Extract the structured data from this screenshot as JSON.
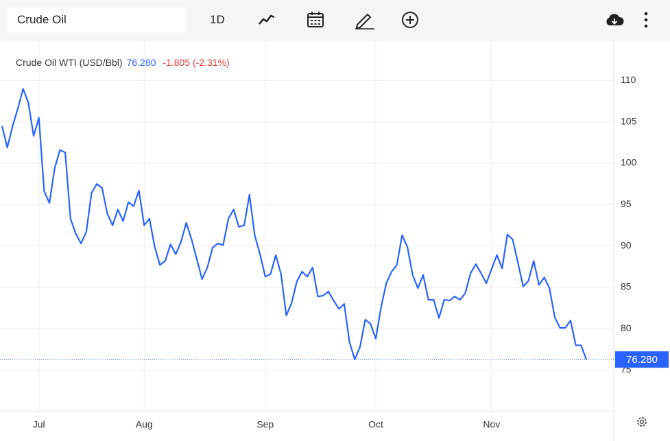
{
  "toolbar": {
    "search": "Crude Oil",
    "interval": "1D"
  },
  "chart_data": {
    "type": "line",
    "title": "Crude Oil WTI (USD/Bbl)",
    "change": "-1.805 (-2.31%)",
    "price_line": {
      "value": 76.28,
      "label": "76.280"
    },
    "categories": [
      null,
      null,
      null,
      null,
      null,
      null,
      null,
      "Jul",
      null,
      null,
      null,
      null,
      null,
      null,
      null,
      null,
      null,
      null,
      null,
      null,
      null,
      null,
      null,
      null,
      null,
      null,
      null,
      "Aug",
      null,
      null,
      null,
      null,
      null,
      null,
      null,
      null,
      null,
      null,
      null,
      null,
      null,
      null,
      null,
      null,
      null,
      null,
      null,
      null,
      null,
      null,
      "Sep",
      null,
      null,
      null,
      null,
      null,
      null,
      null,
      null,
      null,
      null,
      null,
      null,
      null,
      null,
      null,
      null,
      null,
      null,
      null,
      null,
      "Oct",
      null,
      null,
      null,
      null,
      null,
      null,
      null,
      null,
      null,
      null,
      null,
      null,
      null,
      null,
      null,
      null,
      null,
      null,
      null,
      null,
      null,
      "Nov",
      null,
      null,
      null,
      null,
      null,
      null,
      null,
      null,
      null,
      null,
      null,
      null,
      null,
      null,
      null,
      null,
      null,
      null
    ],
    "series": [
      {
        "name": "Crude Oil WTI",
        "color": "#2962ff",
        "values": [
          104.5,
          101.9,
          104.5,
          106.6,
          109.0,
          107.3,
          103.3,
          105.5,
          96.6,
          95.2,
          99.4,
          101.6,
          101.3,
          93.3,
          91.5,
          90.3,
          91.7,
          96.4,
          97.5,
          97.0,
          93.9,
          92.5,
          94.4,
          93.0,
          95.3,
          94.8,
          96.7,
          92.5,
          93.3,
          89.9,
          87.7,
          88.2,
          90.2,
          89.0,
          90.5,
          92.8,
          90.8,
          88.4,
          86.0,
          87.4,
          89.8,
          90.3,
          90.1,
          93.3,
          94.4,
          92.3,
          92.5,
          96.2,
          91.3,
          89.0,
          86.3,
          86.6,
          88.9,
          86.6,
          81.6,
          83.1,
          85.7,
          86.9,
          86.3,
          87.4,
          83.9,
          84.0,
          84.5,
          83.4,
          82.4,
          83.0,
          78.4,
          76.3,
          77.8,
          81.1,
          80.6,
          78.8,
          82.6,
          85.5,
          86.9,
          87.7,
          91.3,
          89.9,
          86.5,
          84.9,
          86.5,
          83.5,
          83.5,
          81.3,
          83.5,
          83.4,
          83.9,
          83.5,
          84.3,
          86.7,
          87.8,
          86.7,
          85.5,
          87.2,
          88.9,
          87.3,
          91.4,
          90.8,
          88.0,
          85.1,
          85.8,
          88.2,
          85.3,
          86.2,
          84.9,
          81.4,
          80.1,
          80.1,
          81.0,
          78.0,
          78.0,
          76.28
        ]
      }
    ],
    "ylim": [
      70,
      115
    ],
    "yticks": [
      75,
      80,
      85,
      90,
      95,
      100,
      105,
      110
    ],
    "grid": true
  }
}
